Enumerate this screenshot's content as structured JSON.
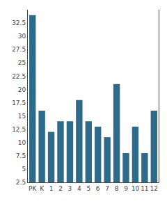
{
  "chart_data": {
    "type": "bar",
    "categories": [
      "PK",
      "K",
      "1",
      "2",
      "3",
      "4",
      "5",
      "6",
      "7",
      "8",
      "9",
      "10",
      "11",
      "12"
    ],
    "values": [
      34,
      16,
      12,
      14,
      14,
      18,
      14,
      13,
      11,
      21,
      8,
      13,
      8,
      16
    ],
    "color": "#2e6a8a",
    "ylim": [
      2.5,
      35
    ],
    "yticks": [
      2.5,
      5,
      7.5,
      10,
      12.5,
      15,
      17.5,
      20,
      22.5,
      25,
      27.5,
      30,
      32.5
    ],
    "grid": false
  }
}
